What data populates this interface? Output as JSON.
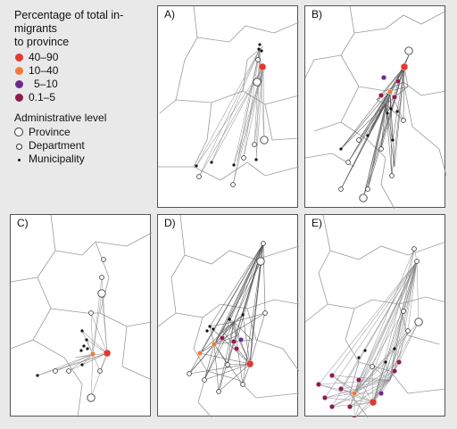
{
  "legend": {
    "title_line1": "Percentage of total in-migrants",
    "title_line2": "to province",
    "categories": [
      {
        "label": "40–90",
        "color": "#e03a2f"
      },
      {
        "label": "10–40",
        "color": "#ef7a3a"
      },
      {
        "label": "5–10",
        "color": "#6b2a8c"
      },
      {
        "label": "0.1–5",
        "color": "#8e1b4f"
      }
    ],
    "admin_title": "Administrative level",
    "admin_levels": [
      "Province",
      "Department",
      "Municipality"
    ]
  },
  "panels": [
    {
      "label": "A)"
    },
    {
      "label": "B)"
    },
    {
      "label": "C)"
    },
    {
      "label": "D)"
    },
    {
      "label": "E)"
    }
  ]
}
